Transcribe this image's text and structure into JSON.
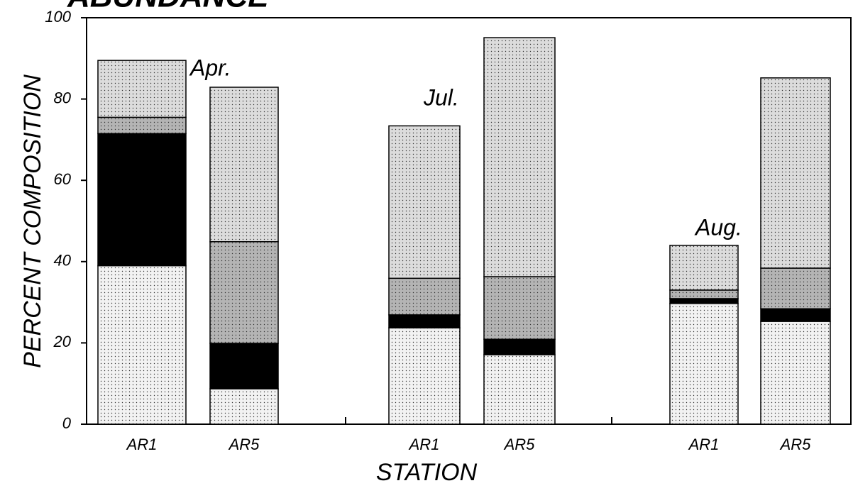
{
  "chart_data": {
    "type": "stacked_bar",
    "title": "ABUNDANCE",
    "x_label": "STATION",
    "y_label": "PERCENT COMPOSITION",
    "categories": [
      "AR1",
      "AR5",
      "AR1",
      "AR5",
      "AR1",
      "AR5"
    ],
    "annotations": [
      "Apr.",
      "Jul.",
      "Aug."
    ],
    "series": [
      {
        "color": "#f2f2f2",
        "values": [
          39,
          8.7,
          23.7,
          17.1,
          29.7,
          25.3
        ]
      },
      {
        "color": "#000000",
        "values": [
          32.5,
          11.2,
          3.2,
          3.8,
          1.2,
          3.1
        ]
      },
      {
        "color": "#b4b4b4",
        "values": [
          4,
          25,
          9,
          15.4,
          2.1,
          10
        ]
      },
      {
        "color": "#dcdcdc",
        "values": [
          14,
          38,
          37.5,
          58.8,
          11,
          46.8
        ]
      }
    ],
    "ylim": [
      0,
      100
    ],
    "yticks": [
      0,
      20,
      40,
      60,
      80,
      100
    ]
  }
}
